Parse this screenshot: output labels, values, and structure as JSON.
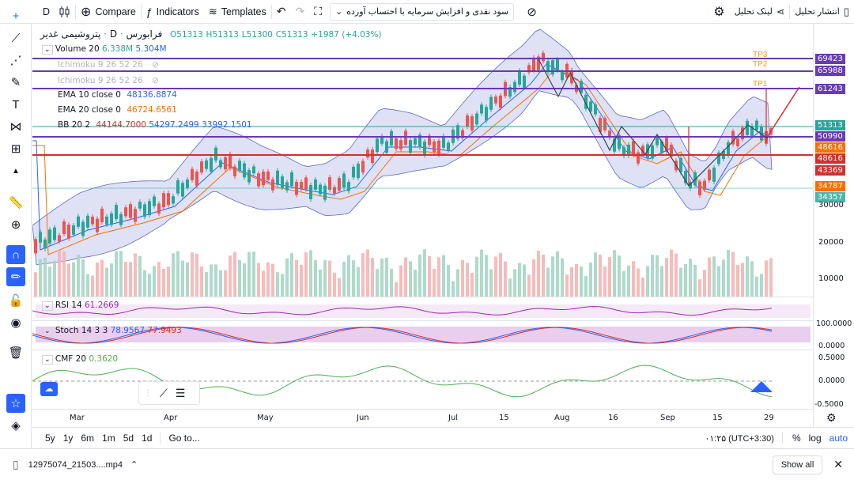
{
  "toolbar": {
    "interval": "D",
    "compare": "Compare",
    "indicators": "Indicators",
    "templates": "Templates",
    "strategy": "سود نقدی و افزایش سرمایه با احتساب آورده",
    "link": "لینک تحلیل",
    "publish": "انتشار تحلیل"
  },
  "symbol": {
    "name": "پتروشیمی غدیر",
    "interval": "D",
    "exchange": "فرابورس",
    "open": "O51313",
    "high": "H51313",
    "low": "L51300",
    "close": "C51313",
    "change": "+1987 (+4.03%)"
  },
  "legend": {
    "volume_name": "Volume 20",
    "volume_v1": "6.338M",
    "volume_v2": "5.304M",
    "ichimoku1": "Ichimoku 9 26 52 26",
    "ichimoku2": "Ichimoku 9 26 52 26",
    "ema10_name": "EMA 10 close 0",
    "ema10_val": "48136.8874",
    "ema20_name": "EMA 20 close 0",
    "ema20_val": "46724.6561",
    "bb_name": "BB 20 2",
    "bb_v1": "44144.7000",
    "bb_v2": "54297.2499",
    "bb_v3": "33992.1501",
    "rsi_name": "RSI 14",
    "rsi_val": "61.2669",
    "stoch_name": "Stoch 14 3 3",
    "stoch_v1": "78.9567",
    "stoch_v2": "77.9493",
    "cmf_name": "CMF 20",
    "cmf_val": "0.3620"
  },
  "targets": {
    "tp1": "TP1",
    "tp2": "TP2",
    "tp3": "TP3"
  },
  "price_labels": [
    "69423",
    "65988",
    "61243",
    "51313",
    "50990",
    "48616",
    "48616",
    "43369",
    "34787",
    "34357"
  ],
  "price_ticks": [
    "30000",
    "20000",
    "10000"
  ],
  "rsi_ticks": [],
  "stoch_ticks": [
    "100.0000",
    "0.0000"
  ],
  "cmf_ticks": [
    "0.5000",
    "0.0000",
    "-0.5000"
  ],
  "time_labels": [
    "Mar",
    "Apr",
    "May",
    "Jun",
    "Jul",
    "15",
    "Aug",
    "16",
    "Sep",
    "15",
    "29"
  ],
  "bottom": {
    "ranges": [
      "5y",
      "1y",
      "6m",
      "1m",
      "5d",
      "1d"
    ],
    "goto": "Go to...",
    "time": "۰۱:۲۵ (UTC+3:30)",
    "percent": "%",
    "log": "log",
    "auto": "auto"
  },
  "download": {
    "file": "12975074_21503....mp4",
    "show_all": "Show all"
  },
  "colors": {
    "accent": "#2962ff",
    "up": "#26a69a",
    "down": "#ef5350",
    "bb_fill": "#d1d4f0",
    "rsi": "#9c27b0",
    "cmf": "#4caf50"
  }
}
